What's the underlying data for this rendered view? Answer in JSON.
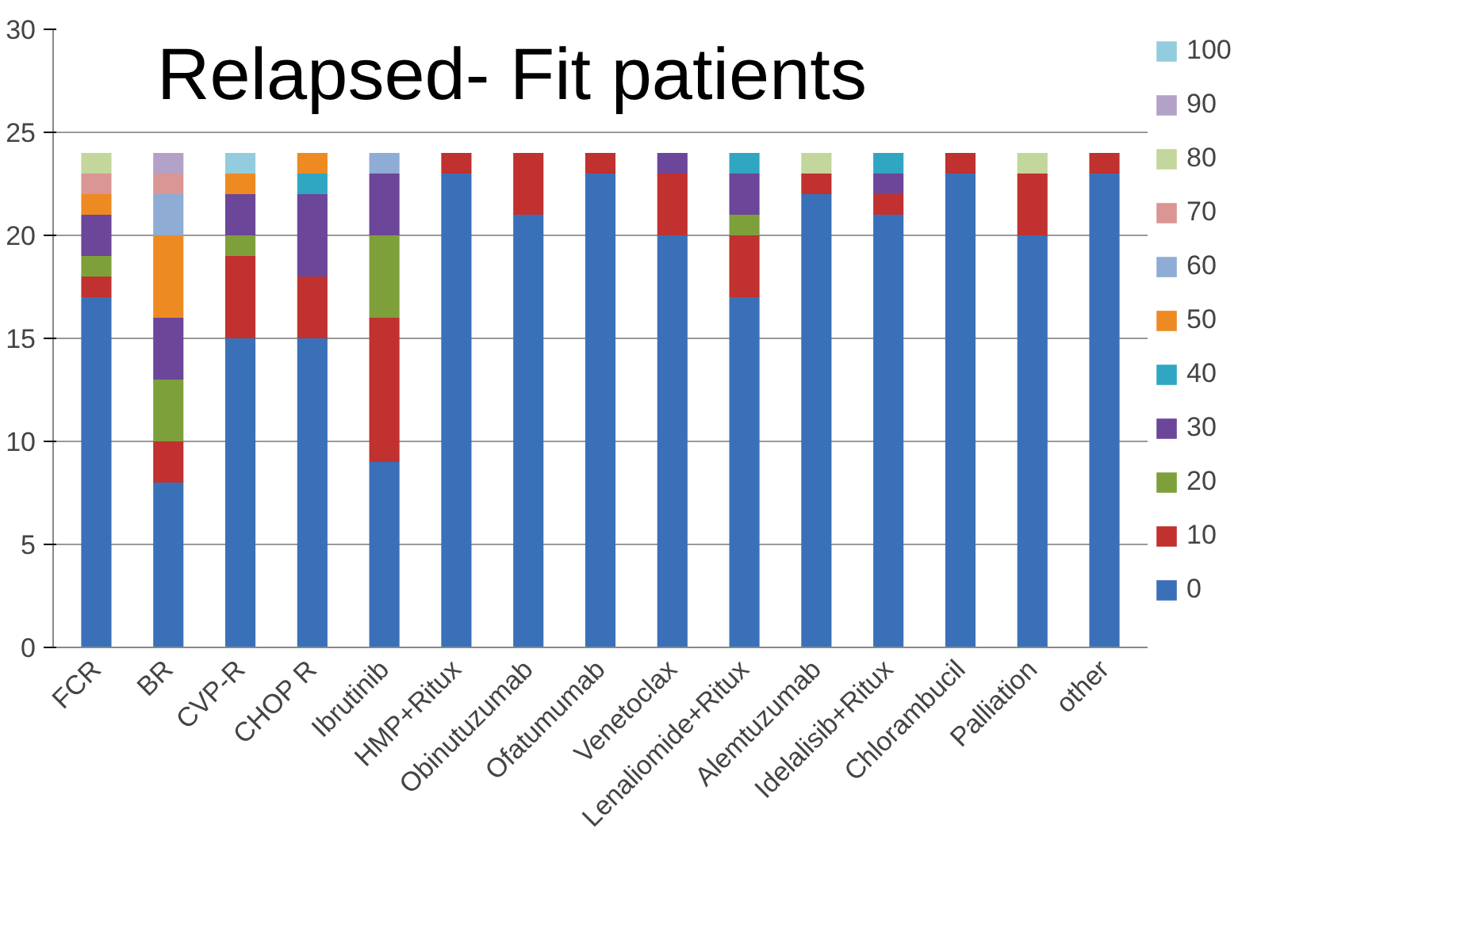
{
  "chart_data": {
    "type": "bar",
    "title": "Relapsed- Fit patients",
    "stacked": true,
    "categories": [
      "FCR",
      "BR",
      "CVP-R",
      "CHOP R",
      "Ibrutinib",
      "HMP+Ritux",
      "Obinutuzumab",
      "Ofatumumab",
      "Venetoclax",
      "Lenaliomide+Ritux",
      "Alemtuzumab",
      "Idelalisib+Ritux",
      "Chlorambucil",
      "Palliation",
      "other"
    ],
    "series": [
      {
        "name": "0",
        "color": "#3a70b8",
        "values": [
          17,
          8,
          15,
          15,
          9,
          23,
          21,
          23,
          20,
          17,
          22,
          21,
          23,
          20,
          23
        ]
      },
      {
        "name": "10",
        "color": "#c0312f",
        "values": [
          1,
          2,
          4,
          3,
          7,
          1,
          3,
          1,
          3,
          3,
          1,
          1,
          1,
          3,
          1
        ]
      },
      {
        "name": "20",
        "color": "#7ea03a",
        "values": [
          1,
          3,
          1,
          0,
          4,
          0,
          0,
          0,
          0,
          1,
          0,
          0,
          0,
          0,
          0
        ]
      },
      {
        "name": "30",
        "color": "#6b4699",
        "values": [
          2,
          3,
          2,
          4,
          3,
          0,
          0,
          0,
          1,
          2,
          0,
          1,
          0,
          0,
          0
        ]
      },
      {
        "name": "40",
        "color": "#2fa7c2",
        "values": [
          0,
          0,
          0,
          1,
          0,
          0,
          0,
          0,
          0,
          1,
          0,
          1,
          0,
          0,
          0
        ]
      },
      {
        "name": "50",
        "color": "#ee8a22",
        "values": [
          1,
          4,
          1,
          1,
          0,
          0,
          0,
          0,
          0,
          0,
          0,
          0,
          0,
          0,
          0
        ]
      },
      {
        "name": "60",
        "color": "#8eacd4",
        "values": [
          0,
          2,
          0,
          0,
          1,
          0,
          0,
          0,
          0,
          0,
          0,
          0,
          0,
          0,
          0
        ]
      },
      {
        "name": "70",
        "color": "#d99694",
        "values": [
          1,
          1,
          0,
          0,
          0,
          0,
          0,
          0,
          0,
          0,
          0,
          0,
          0,
          0,
          0
        ]
      },
      {
        "name": "80",
        "color": "#c3d69b",
        "values": [
          1,
          0,
          0,
          0,
          0,
          0,
          0,
          0,
          0,
          0,
          1,
          0,
          0,
          1,
          0
        ]
      },
      {
        "name": "90",
        "color": "#b3a2c7",
        "values": [
          0,
          1,
          0,
          0,
          0,
          0,
          0,
          0,
          0,
          0,
          0,
          0,
          0,
          0,
          0
        ]
      },
      {
        "name": "100",
        "color": "#93cddd",
        "values": [
          0,
          0,
          1,
          0,
          0,
          0,
          0,
          0,
          0,
          0,
          0,
          0,
          0,
          0,
          0
        ]
      }
    ],
    "ylim": [
      0,
      30
    ],
    "yticks": [
      0,
      5,
      10,
      15,
      20,
      25,
      30
    ],
    "grid": "y",
    "legend": "right"
  }
}
